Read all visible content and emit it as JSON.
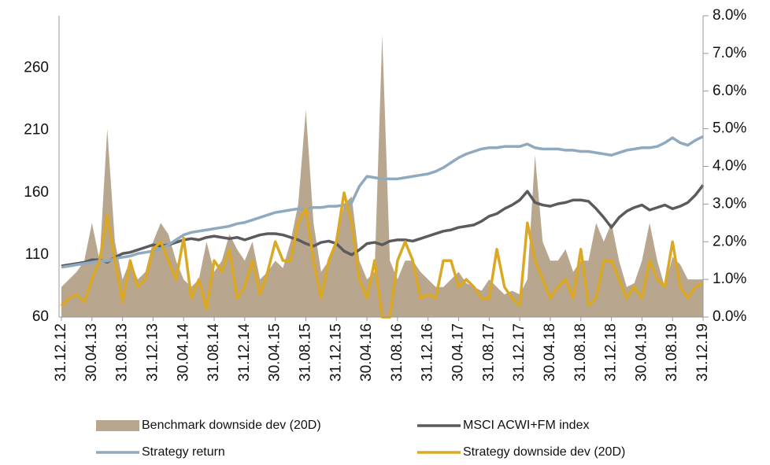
{
  "chart_data": {
    "type": "line",
    "categories": [
      "31.12.12",
      null,
      null,
      null,
      "30.04.13",
      null,
      null,
      null,
      "31.08.13",
      null,
      null,
      null,
      "31.12.13",
      null,
      null,
      null,
      "30.04.14",
      null,
      null,
      null,
      "31.08.14",
      null,
      null,
      null,
      "31.12.14",
      null,
      null,
      null,
      "30.04.15",
      null,
      null,
      null,
      "31.08.15",
      null,
      null,
      null,
      "31.12.15",
      null,
      null,
      null,
      "30.04.16",
      null,
      null,
      null,
      "31.08.16",
      null,
      null,
      null,
      "31.12.16",
      null,
      null,
      null,
      "30.04.17",
      null,
      null,
      null,
      "31.08.17",
      null,
      null,
      null,
      "31.12.17",
      null,
      null,
      null,
      "30.04.18",
      null,
      null,
      null,
      "31.08.18",
      null,
      null,
      null,
      "31.12.18",
      null,
      null,
      null,
      "30.04.19",
      null,
      null,
      null,
      "31.08.19",
      null,
      null,
      null,
      "31.12.19"
    ],
    "series": [
      {
        "name": "Benchmark downside dev (20D)",
        "color": "#b8a68e",
        "style": "area",
        "axis": "y2",
        "values": [
          0.8,
          1.0,
          1.2,
          1.5,
          2.5,
          1.5,
          5.0,
          2.0,
          1.0,
          1.5,
          1.0,
          1.2,
          2.0,
          2.5,
          2.2,
          1.5,
          1.0,
          0.8,
          1.0,
          2.0,
          1.2,
          1.5,
          2.2,
          1.8,
          1.5,
          2.0,
          1.0,
          1.2,
          1.5,
          1.3,
          2.0,
          3.0,
          5.5,
          2.5,
          1.2,
          1.5,
          2.0,
          3.0,
          3.2,
          1.5,
          1.0,
          1.2,
          7.5,
          1.5,
          1.0,
          1.5,
          1.5,
          1.2,
          1.0,
          0.8,
          0.8,
          1.0,
          1.2,
          0.9,
          0.8,
          0.7,
          1.0,
          0.8,
          0.6,
          0.7,
          0.6,
          1.0,
          4.3,
          2.0,
          1.5,
          1.5,
          1.8,
          1.2,
          1.5,
          1.5,
          2.5,
          2.0,
          2.5,
          1.5,
          0.8,
          0.9,
          1.5,
          2.5,
          1.5,
          0.8,
          1.6,
          1.4,
          1.0,
          1.0,
          1.0
        ]
      },
      {
        "name": "MSCI ACWI+FM index",
        "color": "#5b5b5d",
        "style": "line",
        "values": [
          101,
          102,
          103,
          104,
          106,
          106,
          104,
          108,
          111,
          112,
          114,
          116,
          118,
          117,
          118,
          120,
          122,
          123,
          122,
          124,
          125,
          124,
          123,
          124,
          122,
          124,
          126,
          127,
          127,
          126,
          124,
          122,
          119,
          117,
          120,
          121,
          119,
          113,
          110,
          114,
          119,
          120,
          118,
          121,
          122,
          122,
          121,
          123,
          125,
          127,
          129,
          130,
          132,
          133,
          134,
          137,
          141,
          143,
          147,
          150,
          154,
          161,
          152,
          150,
          149,
          151,
          152,
          154,
          154,
          153,
          147,
          140,
          132,
          140,
          145,
          148,
          150,
          146,
          148,
          150,
          147,
          149,
          152,
          158,
          166
        ]
      },
      {
        "name": "Strategy return",
        "color": "#8fa9be",
        "style": "line",
        "values": [
          100,
          101,
          102,
          103,
          104,
          105,
          105,
          107,
          108,
          109,
          111,
          112,
          113,
          115,
          118,
          122,
          126,
          128,
          129,
          130,
          131,
          132,
          133,
          135,
          136,
          138,
          140,
          142,
          144,
          145,
          146,
          147,
          147,
          148,
          148,
          149,
          149,
          150,
          152,
          165,
          173,
          172,
          171,
          171,
          171,
          172,
          173,
          174,
          175,
          177,
          180,
          184,
          188,
          191,
          193,
          195,
          196,
          196,
          197,
          197,
          197,
          199,
          196,
          195,
          195,
          195,
          194,
          194,
          193,
          193,
          192,
          191,
          190,
          192,
          194,
          195,
          196,
          196,
          197,
          200,
          204,
          200,
          198,
          202,
          205
        ]
      },
      {
        "name": "Strategy downside dev (20D)",
        "color": "#dba823",
        "style": "line",
        "axis": "y2",
        "values": [
          0.3,
          0.5,
          0.6,
          0.4,
          1.0,
          1.5,
          2.7,
          1.5,
          0.4,
          1.5,
          0.8,
          1.0,
          1.8,
          2.0,
          1.5,
          1.0,
          2.1,
          0.5,
          1.0,
          0.2,
          1.5,
          1.2,
          1.8,
          0.5,
          0.8,
          1.5,
          0.6,
          1.2,
          2.0,
          1.5,
          1.5,
          2.5,
          2.9,
          1.5,
          0.5,
          1.5,
          2.0,
          3.3,
          2.5,
          1.0,
          0.5,
          1.5,
          0.0,
          0.0,
          1.5,
          2.0,
          1.5,
          0.5,
          0.6,
          0.5,
          1.5,
          1.5,
          0.8,
          1.0,
          0.8,
          0.5,
          0.5,
          1.8,
          0.8,
          0.5,
          0.3,
          2.5,
          1.5,
          1.0,
          0.5,
          0.8,
          1.0,
          0.5,
          1.8,
          0.3,
          0.5,
          1.5,
          1.5,
          1.0,
          0.5,
          0.8,
          0.5,
          1.5,
          1.0,
          0.8,
          2.0,
          0.8,
          0.5,
          0.8,
          0.9
        ]
      }
    ],
    "ylim": [
      60,
      302
    ],
    "yticks": [
      60,
      110,
      160,
      210,
      260
    ],
    "y2lim": [
      0,
      8
    ],
    "y2ticks": [
      {
        "value": 0,
        "label": "0.0%"
      },
      {
        "value": 1,
        "label": "1.0%"
      },
      {
        "value": 2,
        "label": "2.0%"
      },
      {
        "value": 3,
        "label": "3.0%"
      },
      {
        "value": 4,
        "label": "4.0%"
      },
      {
        "value": 5,
        "label": "5.0%"
      },
      {
        "value": 6,
        "label": "6.0%"
      },
      {
        "value": 7,
        "label": "7.0%"
      },
      {
        "value": 8,
        "label": "8.0%"
      }
    ],
    "legend": "bottom"
  }
}
